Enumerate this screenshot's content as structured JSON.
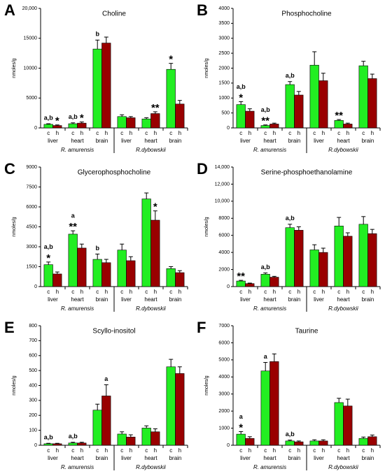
{
  "chart_data": [
    {
      "type": "bar",
      "panel": "A",
      "title": "Choline",
      "ylabel": "nmoles/g",
      "categories": [
        "liver",
        "heart",
        "brain",
        "liver",
        "heart",
        "brain"
      ],
      "groups": [
        "R. amurensis",
        "R.dybowskii"
      ],
      "ylim": [
        0,
        20000
      ],
      "yticks": [
        0,
        5000,
        10000,
        15000,
        {
          "value": 20000,
          "label": "20,000"
        }
      ],
      "series": [
        {
          "name": "c",
          "color": "#22ee22",
          "values": [
            600,
            700,
            13200,
            1900,
            1500,
            9800
          ],
          "errors": [
            100,
            150,
            1500,
            300,
            200,
            1000
          ],
          "annotations": [
            [
              "a,b"
            ],
            [
              "a,b"
            ],
            [
              "b"
            ],
            null,
            null,
            [
              "*"
            ]
          ]
        },
        {
          "name": "h",
          "color": "#990000",
          "values": [
            400,
            800,
            14200,
            1700,
            2400,
            4000
          ],
          "errors": [
            100,
            200,
            1000,
            200,
            300,
            600
          ],
          "annotations": [
            [
              "*"
            ],
            [
              "*"
            ],
            null,
            null,
            [
              "**"
            ],
            null
          ]
        }
      ]
    },
    {
      "type": "bar",
      "panel": "B",
      "title": "Phosphocholine",
      "ylabel": "nmoles/g",
      "categories": [
        "liver",
        "heart",
        "brain",
        "liver",
        "heart",
        "brain"
      ],
      "groups": [
        "R. amurensis",
        "R.dybowskii"
      ],
      "ylim": [
        0,
        4000
      ],
      "yticks": [
        0,
        500,
        1000,
        1500,
        2000,
        2500,
        3000,
        3500,
        4000
      ],
      "series": [
        {
          "name": "c",
          "color": "#22ee22",
          "values": [
            780,
            80,
            1450,
            2100,
            250,
            2080
          ],
          "errors": [
            100,
            20,
            100,
            450,
            30,
            150
          ],
          "annotations": [
            [
              "a,b",
              "*"
            ],
            [
              "a,b",
              "**"
            ],
            [
              "a,b"
            ],
            null,
            [
              "**"
            ],
            null
          ]
        },
        {
          "name": "h",
          "color": "#990000",
          "values": [
            560,
            130,
            1100,
            1580,
            130,
            1650
          ],
          "errors": [
            80,
            30,
            120,
            250,
            30,
            150
          ],
          "annotations": [
            null,
            null,
            null,
            null,
            null,
            null
          ]
        }
      ]
    },
    {
      "type": "bar",
      "panel": "C",
      "title": "Glycerophosphocholine",
      "ylabel": "nmoles/g",
      "categories": [
        "liver",
        "heart",
        "brain",
        "liver",
        "heart",
        "brain"
      ],
      "groups": [
        "R. amurensis",
        "R.dybowskii"
      ],
      "ylim": [
        0,
        9000
      ],
      "yticks": [
        0,
        1500,
        3000,
        4500,
        6000,
        7500,
        9000
      ],
      "series": [
        {
          "name": "c",
          "color": "#22ee22",
          "values": [
            1650,
            3950,
            2050,
            2750,
            6600,
            1350
          ],
          "errors": [
            200,
            250,
            400,
            450,
            450,
            150
          ],
          "annotations": [
            [
              "a,b",
              "*"
            ],
            [
              "a",
              "**"
            ],
            [
              "b"
            ],
            null,
            null,
            null
          ]
        },
        {
          "name": "h",
          "color": "#990000",
          "values": [
            950,
            2900,
            1800,
            1950,
            5000,
            1050
          ],
          "errors": [
            150,
            300,
            250,
            300,
            700,
            150
          ],
          "annotations": [
            null,
            null,
            null,
            null,
            [
              "*"
            ],
            null
          ]
        }
      ]
    },
    {
      "type": "bar",
      "panel": "D",
      "title": "Serine-phosphoethanolamine",
      "ylabel": "nmoles/g",
      "categories": [
        "liver",
        "heart",
        "brain",
        "liver",
        "heart",
        "brain"
      ],
      "groups": [
        "R. amurensis",
        "R.dybowskii"
      ],
      "ylim": [
        0,
        14000
      ],
      "yticks": [
        0,
        2000,
        4000,
        6000,
        8000,
        {
          "value": 10000,
          "label": "10,000"
        },
        {
          "value": 12000,
          "label": "12,000"
        },
        {
          "value": 14000,
          "label": "14,000"
        }
      ],
      "series": [
        {
          "name": "c",
          "color": "#22ee22",
          "values": [
            650,
            1450,
            6900,
            4300,
            7100,
            7300
          ],
          "errors": [
            80,
            150,
            400,
            600,
            1000,
            900
          ],
          "annotations": [
            [
              "**"
            ],
            [
              "a,b"
            ],
            [
              "a,b"
            ],
            null,
            null,
            null
          ]
        },
        {
          "name": "h",
          "color": "#990000",
          "values": [
            350,
            1100,
            6600,
            4000,
            5900,
            6200
          ],
          "errors": [
            60,
            100,
            400,
            500,
            400,
            500
          ],
          "annotations": [
            null,
            null,
            null,
            null,
            null,
            null
          ]
        }
      ]
    },
    {
      "type": "bar",
      "panel": "E",
      "title": "Scyllo-inositol",
      "ylabel": "nmoles/g",
      "categories": [
        "liver",
        "heart",
        "brain",
        "liver",
        "heart",
        "brain"
      ],
      "groups": [
        "R. amurensis",
        "R.dybowskii"
      ],
      "ylim": [
        0,
        800
      ],
      "yticks": [
        0,
        100,
        200,
        300,
        400,
        500,
        600,
        700,
        800
      ],
      "series": [
        {
          "name": "c",
          "color": "#22ee22",
          "values": [
            10,
            15,
            235,
            75,
            115,
            525
          ],
          "errors": [
            3,
            5,
            40,
            15,
            15,
            50
          ],
          "annotations": [
            [
              "a,b"
            ],
            [
              "a,b"
            ],
            null,
            null,
            null,
            null
          ]
        },
        {
          "name": "h",
          "color": "#990000",
          "values": [
            10,
            15,
            330,
            55,
            90,
            480
          ],
          "errors": [
            3,
            5,
            75,
            15,
            20,
            45
          ],
          "annotations": [
            null,
            null,
            [
              "a"
            ],
            null,
            null,
            null
          ]
        }
      ]
    },
    {
      "type": "bar",
      "panel": "F",
      "title": "Taurine",
      "ylabel": "nmoles/g",
      "categories": [
        "liver",
        "heart",
        "brain",
        "liver",
        "heart",
        "brain"
      ],
      "groups": [
        "R. amurensis",
        "R.dybowskii"
      ],
      "ylim": [
        0,
        7000
      ],
      "yticks": [
        0,
        1000,
        2000,
        3000,
        4000,
        5000,
        6000,
        7000
      ],
      "series": [
        {
          "name": "c",
          "color": "#22ee22",
          "values": [
            650,
            4350,
            250,
            250,
            2500,
            400
          ],
          "errors": [
            150,
            500,
            50,
            70,
            250,
            80
          ],
          "annotations": [
            [
              "a",
              "*"
            ],
            [
              "a"
            ],
            [
              "a,b"
            ],
            null,
            null,
            null
          ]
        },
        {
          "name": "h",
          "color": "#990000",
          "values": [
            400,
            4900,
            200,
            250,
            2300,
            500
          ],
          "errors": [
            100,
            450,
            50,
            70,
            400,
            100
          ],
          "annotations": [
            null,
            null,
            null,
            null,
            null,
            null
          ]
        }
      ]
    }
  ]
}
